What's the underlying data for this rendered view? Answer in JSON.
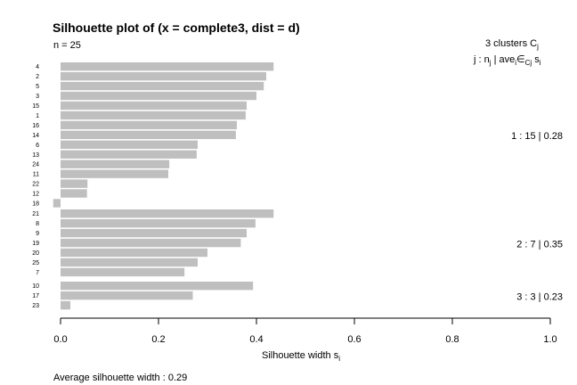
{
  "chart_data": {
    "type": "bar",
    "orientation": "horizontal",
    "title": "Silhouette plot of (x = complete3, dist = d)",
    "n_label": "n = 25",
    "xlabel": "Silhouette width",
    "xlabel_sub": "i",
    "xlabel_base": "s",
    "xlim": [
      0.0,
      1.0
    ],
    "xticks": [
      "0.0",
      "0.2",
      "0.4",
      "0.6",
      "0.8",
      "1.0"
    ],
    "xtick_values": [
      0.0,
      0.2,
      0.4,
      0.6,
      0.8,
      1.0
    ],
    "header_line1": "3  clusters  C",
    "header_line1_sub": "j",
    "header_line2": "j : n",
    "average_label": "Average silhouette width :  0.29",
    "bar_color": "#bfbfbf",
    "clusters": [
      {
        "id": 1,
        "summary": "1 :  15  |  0.28",
        "labels": [
          "4",
          "2",
          "5",
          "3",
          "15",
          "1",
          "16",
          "14",
          "6",
          "13",
          "24",
          "11",
          "22",
          "12",
          "18"
        ],
        "values": [
          0.435,
          0.42,
          0.415,
          0.4,
          0.38,
          0.378,
          0.36,
          0.358,
          0.28,
          0.278,
          0.222,
          0.22,
          0.055,
          0.054,
          -0.015
        ]
      },
      {
        "id": 2,
        "summary": "2 :  7  |  0.35",
        "labels": [
          "21",
          "8",
          "9",
          "19",
          "20",
          "25",
          "7"
        ],
        "values": [
          0.435,
          0.398,
          0.38,
          0.368,
          0.3,
          0.28,
          0.253
        ]
      },
      {
        "id": 3,
        "summary": "3 :  3  |  0.23",
        "labels": [
          "10",
          "17",
          "23"
        ],
        "values": [
          0.393,
          0.27,
          0.02
        ]
      }
    ]
  }
}
